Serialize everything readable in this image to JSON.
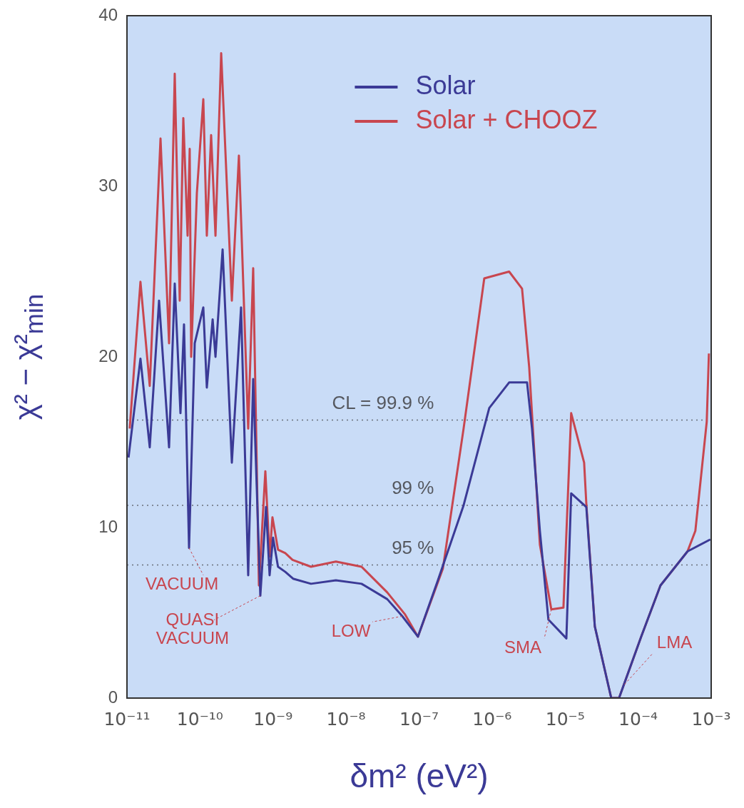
{
  "chart_data": {
    "type": "line",
    "xlabel": "δm² (eV²)",
    "ylabel": "χ² − χ²$_{min}$",
    "log": "x",
    "xlim": [
      1e-11,
      0.001
    ],
    "xticks": [
      {
        "value": 1e-11,
        "label": "10⁻¹¹"
      },
      {
        "value": 1e-10,
        "label": "10⁻¹⁰"
      },
      {
        "value": 1e-09,
        "label": "10⁻⁹"
      },
      {
        "value": 1e-08,
        "label": "10⁻⁸"
      },
      {
        "value": 1e-07,
        "label": "10⁻⁷"
      },
      {
        "value": 1e-06,
        "label": "10⁻⁶"
      },
      {
        "value": 1e-05,
        "label": "10⁻⁵"
      },
      {
        "value": 0.0001,
        "label": "10⁻⁴"
      },
      {
        "value": 0.001,
        "label": "10⁻³"
      }
    ],
    "ylim": [
      0,
      40
    ],
    "yticks": [
      0,
      10,
      20,
      30,
      40
    ],
    "grid": false,
    "legend": "top right",
    "marker": "none",
    "line_style": "solid",
    "series": [
      {
        "name": "Solar",
        "color": "#3b3a96",
        "x": [
          1.05e-11,
          1.53e-11,
          2.05e-11,
          2.75e-11,
          3.77e-11,
          4.51e-11,
          5.4e-11,
          6.04e-11,
          7.08e-11,
          8.47e-11,
          1.11e-10,
          1.24e-10,
          1.49e-10,
          1.63e-10,
          2.04e-10,
          2.73e-10,
          3.65e-10,
          4.57e-10,
          5.35e-10,
          6.7e-10,
          8.02e-10,
          8.98e-10,
          1e-09,
          1.17e-09,
          1.47e-09,
          1.88e-09,
          3.31e-09,
          7.26e-09,
          1.63e-08,
          3.66e-08,
          5.89e-08,
          9.64e-08,
          1.81e-07,
          4.07e-07,
          9.14e-07,
          1.71e-06,
          3.01e-06,
          3.52e-06,
          4.51e-06,
          5.9e-06,
          1.04e-05,
          1.21e-05,
          1.95e-05,
          2.55e-05,
          4.28e-05,
          5.47e-05,
          0.00011,
          0.000202,
          0.000474,
          0.000973
        ],
        "values": [
          14.1,
          19.9,
          14.7,
          23.3,
          14.7,
          24.3,
          16.7,
          21.9,
          8.8,
          20.8,
          22.9,
          18.2,
          22.2,
          20.0,
          26.3,
          13.8,
          22.9,
          7.2,
          18.7,
          6.0,
          11.2,
          7.2,
          9.4,
          7.7,
          7.4,
          7.0,
          6.7,
          6.9,
          6.7,
          5.8,
          4.8,
          3.6,
          6.9,
          11.3,
          17.0,
          18.5,
          18.5,
          15.8,
          9.8,
          4.6,
          3.5,
          12.0,
          11.2,
          4.2,
          0,
          0,
          3.6,
          6.6,
          8.6,
          9.3
        ]
      },
      {
        "name": "Solar + CHOOZ",
        "color": "#c8464f",
        "x": [
          1.09e-11,
          1.53e-11,
          2.05e-11,
          2.88e-11,
          3.77e-11,
          4.51e-11,
          5.28e-11,
          5.91e-11,
          6.76e-11,
          7.23e-11,
          7.57e-11,
          9.06e-11,
          1.11e-10,
          1.24e-10,
          1.42e-10,
          1.63e-10,
          1.95e-10,
          2.73e-10,
          3.41e-10,
          4.57e-10,
          5.35e-10,
          6.41e-10,
          7.85e-10,
          8.98e-10,
          9.82e-10,
          1.17e-09,
          1.47e-09,
          1.85e-09,
          3.31e-09,
          7.26e-09,
          1.63e-08,
          3.66e-08,
          6.44e-08,
          9.64e-08,
          2.12e-07,
          4.07e-07,
          7.81e-07,
          1.71e-06,
          2.57e-06,
          3.22e-06,
          4.51e-06,
          6.47e-06,
          9.48e-06,
          1.21e-05,
          1.82e-05,
          1.95e-05,
          2.55e-05,
          4.28e-05,
          5.47e-05,
          0.00011,
          0.000202,
          0.000474,
          0.000607,
          0.000869,
          0.000931
        ],
        "values": [
          15.8,
          24.4,
          18.3,
          32.8,
          20.8,
          36.6,
          23.3,
          34.0,
          27.1,
          32.2,
          20.0,
          29.6,
          35.1,
          27.1,
          33.0,
          27.1,
          37.8,
          23.3,
          31.8,
          15.8,
          25.2,
          6.6,
          13.3,
          8.3,
          10.6,
          8.7,
          8.5,
          8.1,
          7.7,
          8.0,
          7.7,
          6.2,
          4.9,
          3.6,
          7.6,
          15.8,
          24.6,
          25.0,
          24.0,
          19.4,
          9.0,
          5.2,
          5.3,
          16.7,
          13.8,
          11.4,
          4.2,
          0,
          0,
          3.6,
          6.6,
          8.6,
          9.8,
          16.2,
          20.2
        ]
      }
    ],
    "ref_lines": [
      {
        "axis": "y",
        "value": 16.3,
        "line_style": "dotted",
        "color": "#6a6f7a"
      },
      {
        "axis": "y",
        "value": 11.3,
        "line_style": "dotted",
        "color": "#6a6f7a"
      },
      {
        "axis": "y",
        "value": 7.8,
        "line_style": "dotted",
        "color": "#6a6f7a"
      }
    ],
    "annotations": [
      {
        "text": "CL = 99.9 %",
        "x": 1.6e-07,
        "y": 16.3
      },
      {
        "text": "99 %",
        "x": 1.6e-07,
        "y": 11.3
      },
      {
        "text": "95 %",
        "x": 1.6e-07,
        "y": 7.8
      },
      {
        "text": "VACUUM",
        "x": 7.08e-11,
        "y": 8.8
      },
      {
        "text": "QUASI\nVACUUM",
        "x": 6.7e-10,
        "y": 6.0
      },
      {
        "text": "LOW",
        "x": 5.89e-08,
        "y": 4.8
      },
      {
        "text": "SMA",
        "x": 6.47e-06,
        "y": 5.2
      },
      {
        "text": "LMA",
        "x": 6.5e-05,
        "y": 0.8
      }
    ]
  }
}
